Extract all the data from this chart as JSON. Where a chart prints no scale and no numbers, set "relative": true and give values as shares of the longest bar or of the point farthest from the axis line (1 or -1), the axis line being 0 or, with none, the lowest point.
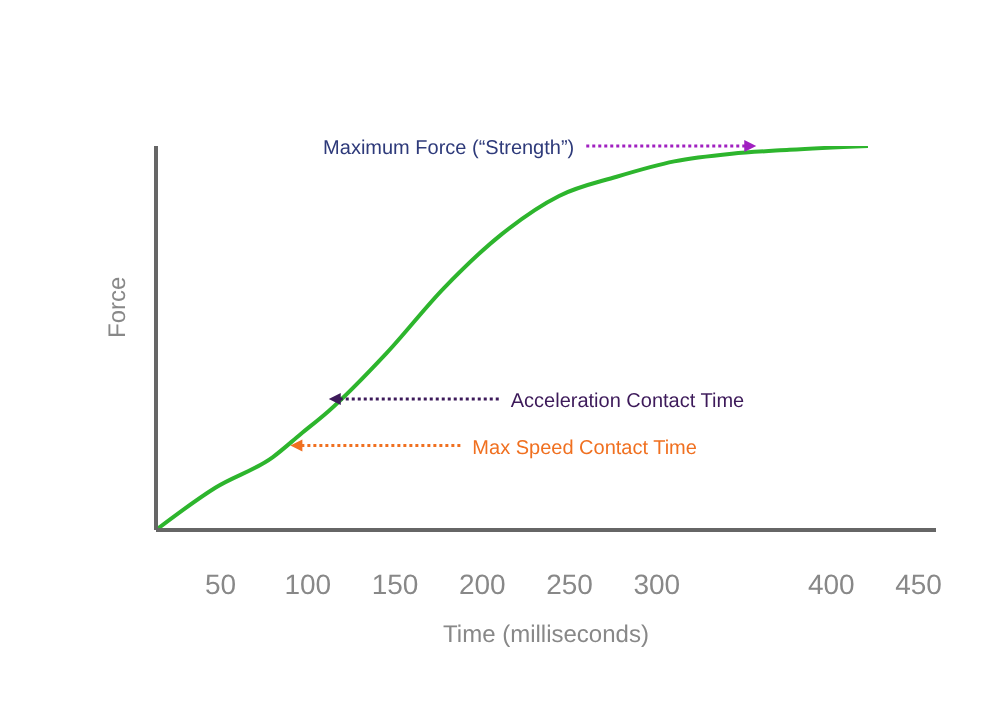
{
  "chart_data": {
    "type": "line",
    "xlabel": "Time (milliseconds)",
    "ylabel": "Force",
    "relative": true,
    "marker": "none",
    "line_style": "solid",
    "x": [
      13,
      47,
      80,
      96,
      112,
      145,
      178,
      211,
      244,
      277,
      310,
      343,
      376,
      421
    ],
    "series": [
      {
        "color": "#2db52d",
        "values": [
          0,
          0.11,
          0.19,
          0.25,
          0.31,
          0.46,
          0.63,
          0.77,
          0.87,
          0.92,
          0.96,
          0.98,
          0.99,
          1
        ]
      }
    ],
    "xlim": [
      13,
      460
    ],
    "xticks": [
      50,
      100,
      150,
      200,
      250,
      300,
      400,
      450
    ],
    "annotations": [
      {
        "text": "Maximum Force (“Strength”)",
        "x": 357,
        "y": 1
      },
      {
        "text": "Acceleration Contact Time",
        "x": 112,
        "y": 0.31
      },
      {
        "text": "Max Speed Contact Time",
        "x": 90,
        "y": 0.22
      }
    ]
  }
}
